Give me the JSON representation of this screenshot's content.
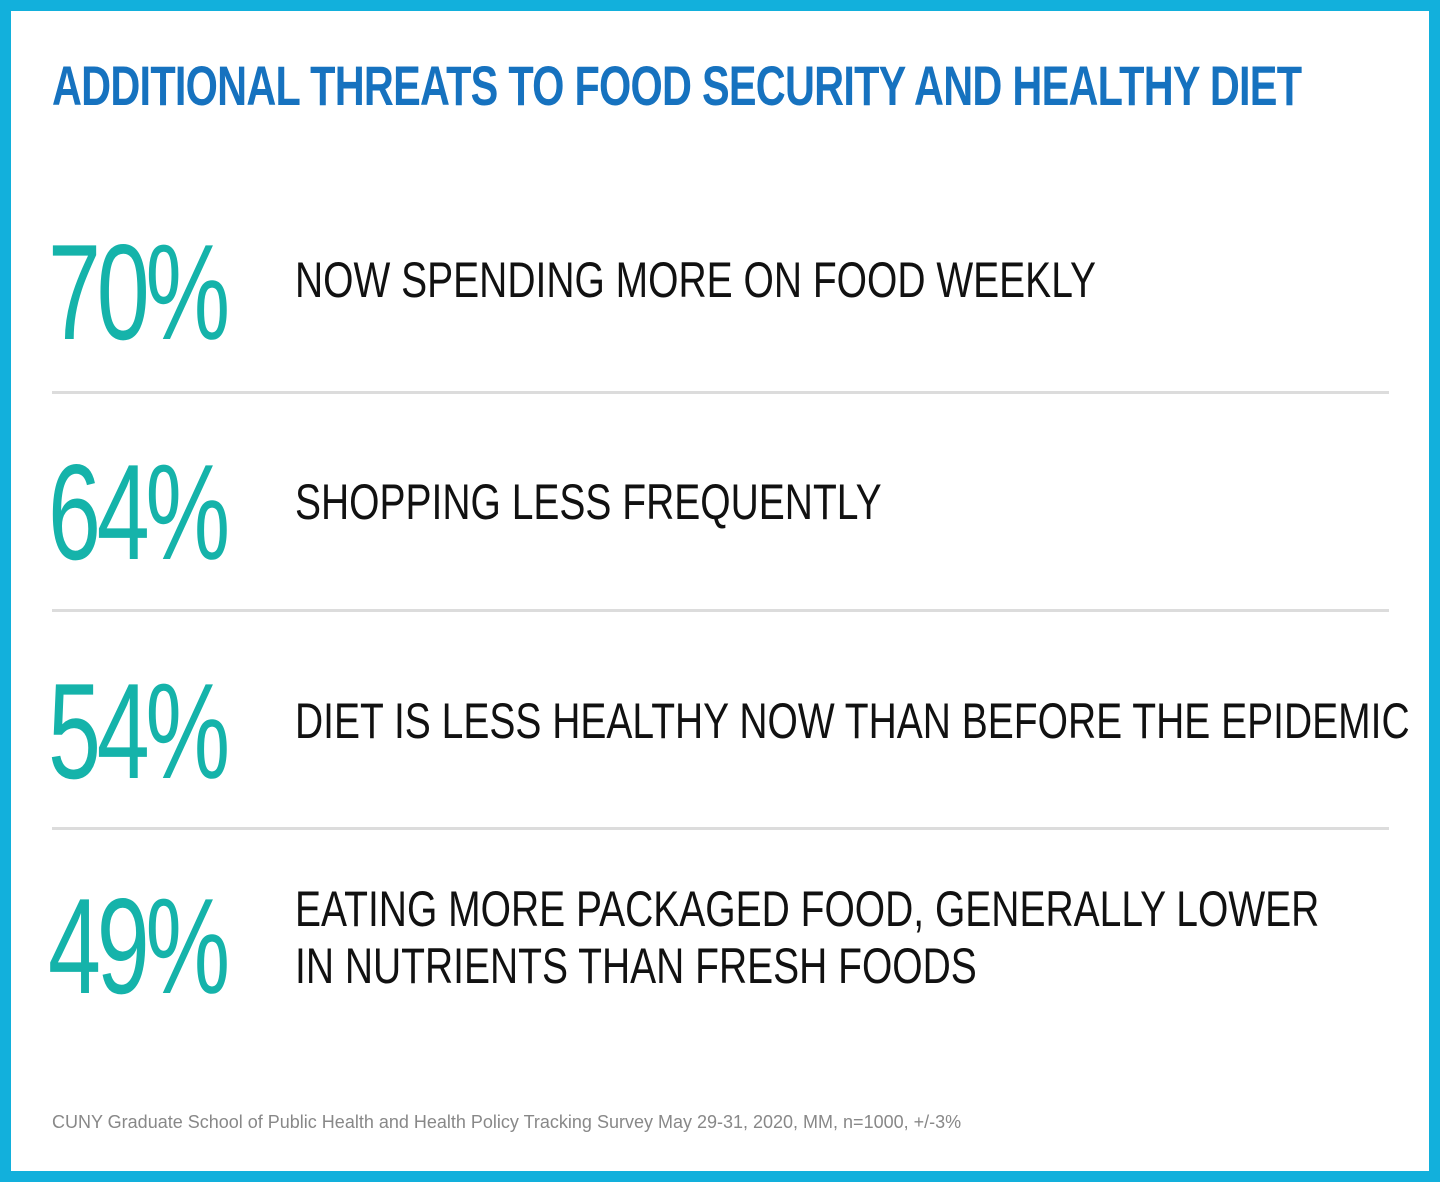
{
  "title": "ADDITIONAL THREATS TO FOOD SECURITY AND HEALTHY DIET",
  "colors": {
    "border": "#12b0dc",
    "title": "#1672bf",
    "percent": "#15b3aa",
    "text": "#111111",
    "divider": "#dcdcdc",
    "source": "#888888"
  },
  "stats": [
    {
      "percent": "70%",
      "lines": [
        "NOW SPENDING MORE ON FOOD WEEKLY"
      ]
    },
    {
      "percent": "64%",
      "lines": [
        "SHOPPING LESS FREQUENTLY"
      ]
    },
    {
      "percent": "54%",
      "lines": [
        "DIET IS LESS HEALTHY NOW THAN BEFORE THE EPIDEMIC"
      ]
    },
    {
      "percent": "49%",
      "lines": [
        "EATING MORE PACKAGED FOOD, GENERALLY LOWER",
        "IN NUTRIENTS THAN FRESH FOODS"
      ]
    }
  ],
  "source": "CUNY Graduate School of Public Health and Health Policy Tracking Survey May 29-31, 2020, MM, n=1000, +/-3%"
}
